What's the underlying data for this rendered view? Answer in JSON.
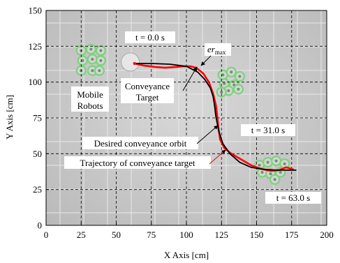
{
  "chart_data": {
    "type": "line",
    "title": "",
    "xlabel": "X Axis [cm]",
    "ylabel": "Y Axis [cm]",
    "xlim": [
      0,
      200
    ],
    "ylim": [
      0,
      150
    ],
    "xticks": [
      "0",
      "25",
      "50",
      "75",
      "100",
      "125",
      "150",
      "175",
      "200"
    ],
    "yticks": [
      "0",
      "25",
      "50",
      "75",
      "100",
      "125",
      "150"
    ],
    "grid": true,
    "series": [
      {
        "name": "Desired conveyance orbit",
        "color": "#000000",
        "x": [
          63,
          75,
          88,
          100,
          108,
          113,
          117,
          119,
          120,
          121,
          123,
          126,
          131,
          138,
          146,
          155,
          165,
          178
        ],
        "y": [
          113,
          113,
          112.5,
          111,
          107,
          102,
          96,
          90,
          84,
          76,
          66,
          57,
          50,
          44,
          40.5,
          39,
          38.5,
          38.5
        ]
      },
      {
        "name": "Trajectory of conveyance target",
        "color": "#ff0000",
        "x": [
          63,
          70,
          78,
          85,
          92,
          98,
          103,
          107,
          112,
          116,
          119,
          121,
          122,
          123,
          124,
          127,
          132,
          139,
          146,
          153,
          160,
          166,
          171,
          176
        ],
        "y": [
          113,
          111.5,
          110.5,
          110,
          110.5,
          111,
          111,
          110,
          106,
          100,
          92,
          84,
          76,
          67,
          60,
          54,
          50,
          46,
          42,
          39.5,
          38,
          38.5,
          40.5,
          39
        ]
      }
    ],
    "annotations": {
      "t_start": "t = 0.0 s",
      "t_mid": "t = 31.0 s",
      "t_end": "t = 63.0 s",
      "mobile_robots_line1": "Mobile",
      "mobile_robots_line2": "Robots",
      "target_line1": "Conveyance",
      "target_line2": "Target",
      "er_max_main": "er",
      "er_max_sub": "max",
      "desired_label": "Desired conveyance orbit",
      "trajectory_label": "Trajectory of conveyance target"
    }
  }
}
